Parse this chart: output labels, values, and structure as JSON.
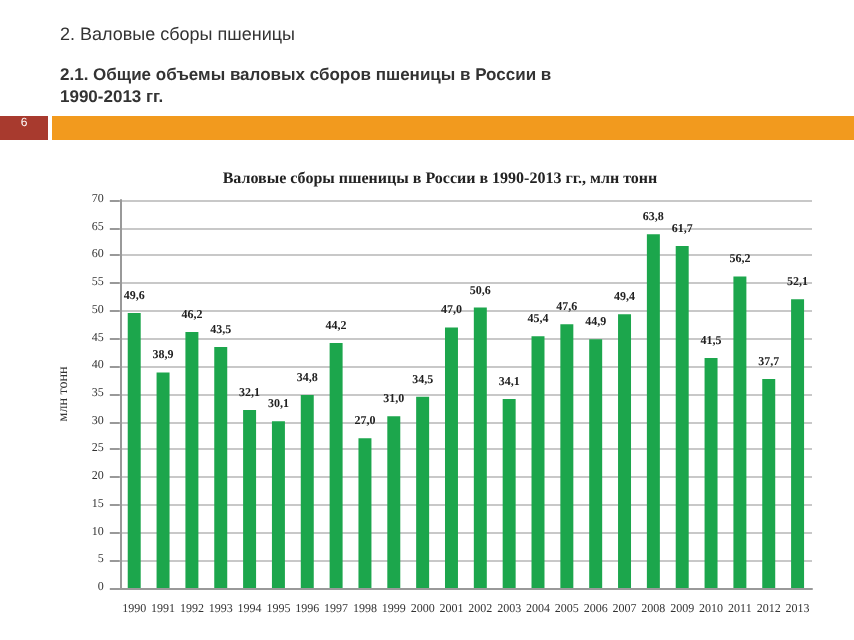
{
  "chart_data": {
    "type": "bar",
    "title": "Валовые сборы пшеницы в России в 1990-2013 гг., млн тонн",
    "ylabel": "млн тонн",
    "annotations": [
      "2. Валовые сборы пшеницы",
      "2.1.  Общие объемы валовых сборов пшеницы в России в 1990-2013 гг.",
      "6"
    ],
    "categories": [
      "1990",
      "1991",
      "1992",
      "1993",
      "1994",
      "1995",
      "1996",
      "1997",
      "1998",
      "1999",
      "2000",
      "2001",
      "2002",
      "2003",
      "2004",
      "2005",
      "2006",
      "2007",
      "2008",
      "2009",
      "2010",
      "2011",
      "2012",
      "2013"
    ],
    "values": [
      49.6,
      38.9,
      46.2,
      43.5,
      32.1,
      30.1,
      34.8,
      44.2,
      27.0,
      31.0,
      34.5,
      47.0,
      50.6,
      34.1,
      45.4,
      47.6,
      44.9,
      49.4,
      63.8,
      61.7,
      41.5,
      56.2,
      37.7,
      52.1
    ],
    "value_labels": [
      "49,6",
      "38,9",
      "46,2",
      "43,5",
      "32,1",
      "30,1",
      "34,8",
      "44,2",
      "27,0",
      "31,0",
      "34,5",
      "47,0",
      "50,6",
      "34,1",
      "45,4",
      "47,6",
      "44,9",
      "49,4",
      "63,8",
      "61,7",
      "41,5",
      "56,2",
      "37,7",
      "52,1"
    ],
    "color": "#1ca64c",
    "ylim": [
      0,
      70
    ],
    "yticks": [
      0,
      5,
      10,
      15,
      20,
      25,
      30,
      35,
      40,
      45,
      50,
      55,
      60,
      65,
      70
    ],
    "grid": "y"
  }
}
